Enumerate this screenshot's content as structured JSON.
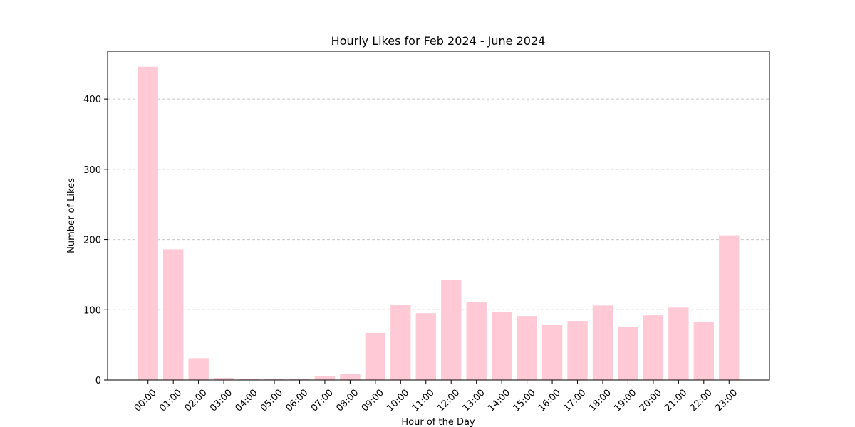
{
  "chart_data": {
    "type": "bar",
    "title": "Hourly Likes for Feb 2024 - June 2024",
    "xlabel": "Hour of the Day",
    "ylabel": "Number of Likes",
    "categories": [
      "00:00",
      "01:00",
      "02:00",
      "03:00",
      "04:00",
      "05:00",
      "06:00",
      "07:00",
      "08:00",
      "09:00",
      "10:00",
      "11:00",
      "12:00",
      "13:00",
      "14:00",
      "15:00",
      "16:00",
      "17:00",
      "18:00",
      "19:00",
      "20:00",
      "21:00",
      "22:00",
      "23:00"
    ],
    "values": [
      446,
      186,
      31,
      3,
      2,
      1,
      1,
      5,
      9,
      67,
      107,
      95,
      142,
      111,
      97,
      91,
      78,
      84,
      106,
      76,
      92,
      103,
      83,
      206
    ],
    "ylim": [
      0,
      468
    ],
    "yticks": [
      0,
      100,
      200,
      300,
      400
    ],
    "ytick_labels": [
      "0",
      "100",
      "200",
      "300",
      "400"
    ],
    "grid": "y-dashed",
    "colors": {
      "bar": "#ffc9d5",
      "grid": "#c8c8c8",
      "axis": "#000000"
    }
  }
}
